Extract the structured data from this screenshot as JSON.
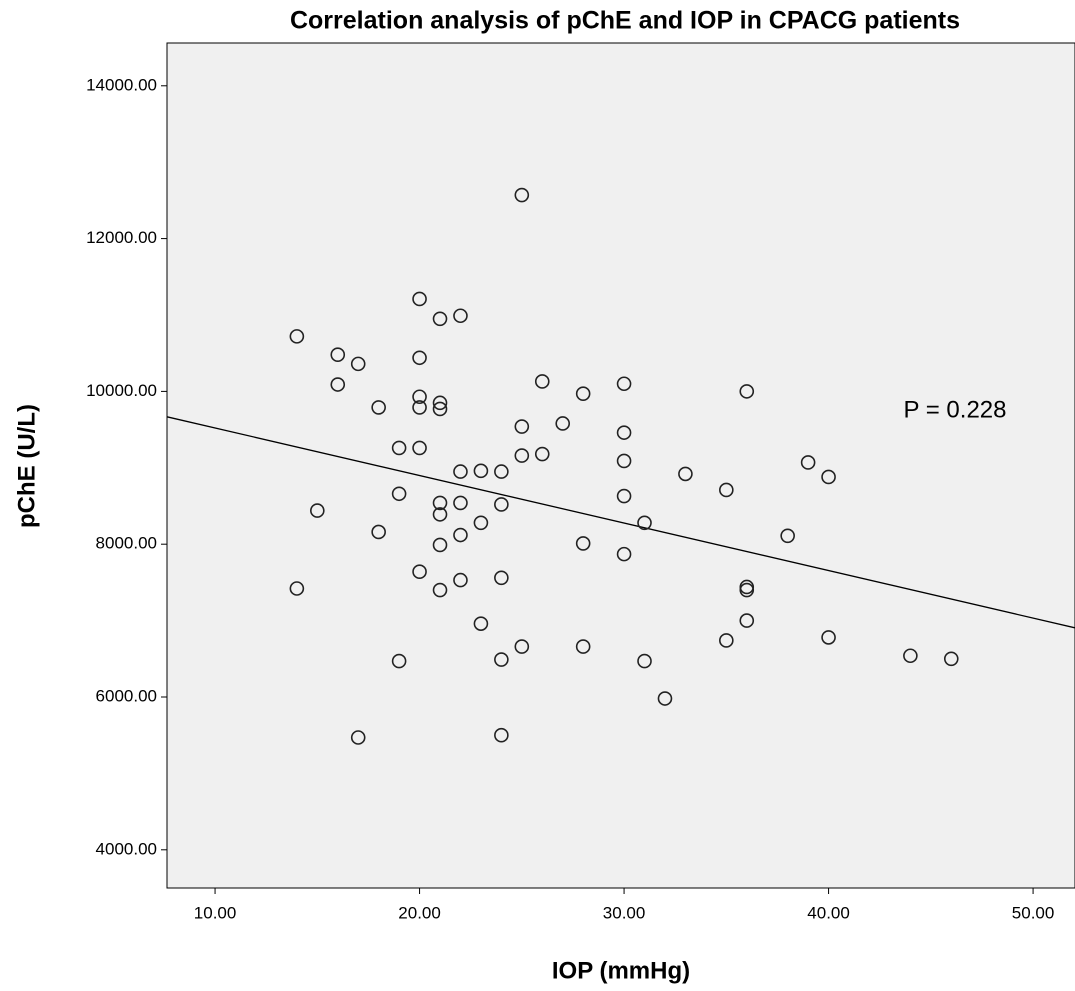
{
  "chart_data": {
    "type": "scatter",
    "title": "Correlation analysis of pChE and IOP in CPACG patients",
    "x_label": "IOP (mmHg)",
    "y_label": "pChE (U/L)",
    "annotation": "P = 0.228",
    "xlim": [
      7.65,
      52.05
    ],
    "ylim": [
      3500,
      14560
    ],
    "xticks": [
      {
        "value": 10,
        "label": "10.00"
      },
      {
        "value": 20,
        "label": "20.00"
      },
      {
        "value": 30,
        "label": "30.00"
      },
      {
        "value": 40,
        "label": "40.00"
      },
      {
        "value": 50,
        "label": "50.00"
      }
    ],
    "yticks": [
      {
        "value": 4000,
        "label": "4000.00"
      },
      {
        "value": 6000,
        "label": "6000.00"
      },
      {
        "value": 8000,
        "label": "8000.00"
      },
      {
        "value": 10000,
        "label": "10000.00"
      },
      {
        "value": 12000,
        "label": "12000.00"
      },
      {
        "value": 14000,
        "label": "14000.00"
      }
    ],
    "color": "#222222",
    "fit": {
      "intercept": 10143,
      "slope": -62.2
    },
    "x": [
      14,
      16,
      17,
      16,
      18,
      20,
      20,
      20,
      20,
      21,
      22,
      21,
      21,
      19,
      20,
      22,
      23,
      24,
      19,
      15,
      21,
      21,
      22,
      24,
      23,
      18,
      22,
      21,
      20,
      21,
      22,
      24,
      14,
      23,
      24,
      25,
      19,
      17,
      24,
      25,
      25,
      26,
      26,
      25,
      27,
      28,
      28,
      28,
      30,
      30,
      30,
      30,
      30,
      31,
      31,
      32,
      33,
      35,
      35,
      36,
      36,
      36,
      36,
      38,
      39,
      40,
      40,
      44,
      46
    ],
    "y": [
      10720,
      10480,
      10360,
      10090,
      9790,
      11210,
      10440,
      9930,
      9790,
      10950,
      10990,
      9850,
      9770,
      9260,
      9260,
      8950,
      8960,
      8950,
      8660,
      8440,
      8540,
      8390,
      8540,
      8520,
      8280,
      8160,
      8120,
      7990,
      7640,
      7400,
      7530,
      7560,
      7420,
      6960,
      6490,
      6660,
      6470,
      5470,
      5500,
      9540,
      9160,
      9180,
      10130,
      12570,
      9580,
      9970,
      8010,
      6660,
      10100,
      9460,
      9090,
      8630,
      7870,
      8280,
      6470,
      5980,
      8920,
      8710,
      6740,
      10000,
      7440,
      7400,
      7000,
      8110,
      9070,
      8880,
      6780,
      6540,
      6500
    ]
  }
}
